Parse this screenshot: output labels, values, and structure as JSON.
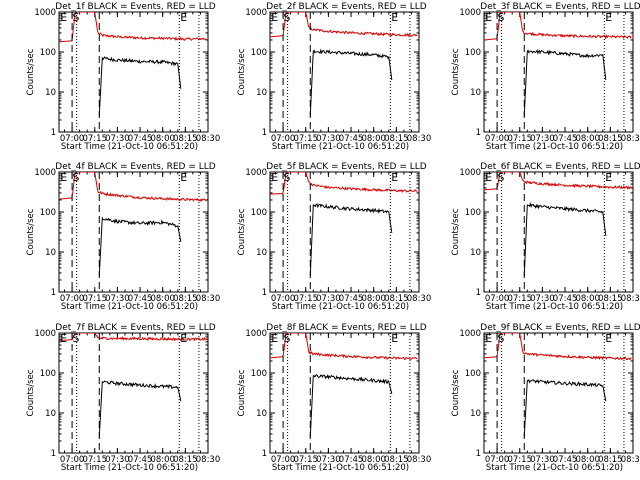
{
  "chart_data": [
    {
      "type": "line",
      "title": "Det_1f BLACK = Events, RED = LLD",
      "xlabel": "Start Time (21-Oct-10 06:51:20)",
      "ylabel": "Counts/sec",
      "yscale": "log",
      "ylim": [
        1,
        1000
      ],
      "yticks": [
        "1",
        "10",
        "100",
        "1000"
      ],
      "xlim": [
        "06:51:20",
        "08:30"
      ],
      "xticks": [
        "07:00",
        "07:15",
        "07:30",
        "07:45",
        "08:00",
        "08:15",
        "08:30"
      ],
      "markers": [
        {
          "label": "E",
          "at": "06:51:30"
        },
        {
          "label": "S",
          "at": "06:59:30"
        },
        {
          "label": "E",
          "at": "08:11:00"
        }
      ],
      "events_x": [
        "07:18",
        "07:20",
        "07:30",
        "07:45",
        "08:00",
        "08:10",
        "08:12"
      ],
      "events_y": [
        2.5,
        70,
        63,
        58,
        56,
        50,
        12
      ],
      "lld_x": [
        "06:51:20",
        "07:00",
        "07:02",
        "07:04",
        "07:15",
        "07:17",
        "07:20",
        "07:30",
        "07:45",
        "08:00",
        "08:15",
        "08:29"
      ],
      "lld_y": [
        180,
        190,
        980,
        1000,
        1000,
        300,
        260,
        240,
        225,
        220,
        210,
        215
      ],
      "series": []
    },
    {
      "type": "line",
      "title": "Det_2f BLACK = Events, RED = LLD",
      "xlabel": "Start Time (21-Oct-10 06:51:20)",
      "ylabel": "Counts/sec",
      "yscale": "log",
      "ylim": [
        1,
        1000
      ],
      "yticks": [
        "1",
        "10",
        "100",
        "1000"
      ],
      "xlim": [
        "06:51:20",
        "08:30"
      ],
      "xticks": [
        "07:00",
        "07:15",
        "07:30",
        "07:45",
        "08:00",
        "08:15",
        "08:30"
      ],
      "markers": [
        {
          "label": "E",
          "at": "06:51:30"
        },
        {
          "label": "S",
          "at": "06:59:30"
        },
        {
          "label": "E",
          "at": "08:11:00"
        }
      ],
      "events_x": [
        "07:18",
        "07:20",
        "07:30",
        "07:45",
        "08:00",
        "08:10",
        "08:12"
      ],
      "events_y": [
        2.5,
        105,
        100,
        92,
        85,
        75,
        20
      ],
      "lld_x": [
        "06:51:20",
        "07:00",
        "07:02",
        "07:04",
        "07:15",
        "07:17",
        "07:20",
        "07:30",
        "07:45",
        "08:00",
        "08:15",
        "08:29"
      ],
      "lld_y": [
        240,
        255,
        980,
        1000,
        1000,
        400,
        360,
        330,
        300,
        285,
        270,
        265
      ],
      "series": []
    },
    {
      "type": "line",
      "title": "Det_3f BLACK = Events, RED = LLD",
      "xlabel": "Start Time (21-Oct-10 06:51:20)",
      "ylabel": "Counts/sec",
      "yscale": "log",
      "ylim": [
        1,
        1000
      ],
      "yticks": [
        "1",
        "10",
        "100",
        "1000"
      ],
      "xlim": [
        "06:51:20",
        "08:30"
      ],
      "xticks": [
        "07:00",
        "07:15",
        "07:30",
        "07:45",
        "08:00",
        "08:15",
        "08:30"
      ],
      "markers": [
        {
          "label": "E",
          "at": "06:51:30"
        },
        {
          "label": "S",
          "at": "06:59:30"
        },
        {
          "label": "E",
          "at": "08:11:00"
        }
      ],
      "events_x": [
        "07:18",
        "07:20",
        "07:30",
        "07:45",
        "08:00",
        "08:10",
        "08:12"
      ],
      "events_y": [
        2.5,
        105,
        100,
        90,
        80,
        85,
        20
      ],
      "lld_x": [
        "06:51:20",
        "07:00",
        "07:02",
        "07:04",
        "07:15",
        "07:17",
        "07:20",
        "07:30",
        "07:45",
        "08:00",
        "08:15",
        "08:29"
      ],
      "lld_y": [
        200,
        215,
        980,
        1000,
        1000,
        310,
        290,
        270,
        255,
        245,
        240,
        235
      ],
      "series": []
    },
    {
      "type": "line",
      "title": "Det_4f BLACK = Events, RED = LLD",
      "xlabel": "Start Time (21-Oct-10 06:51:20)",
      "ylabel": "Counts/sec",
      "yscale": "log",
      "ylim": [
        1,
        1000
      ],
      "yticks": [
        "1",
        "10",
        "100",
        "1000"
      ],
      "xlim": [
        "06:51:20",
        "08:30"
      ],
      "xticks": [
        "07:00",
        "07:15",
        "07:30",
        "07:45",
        "08:00",
        "08:15",
        "08:30"
      ],
      "markers": [
        {
          "label": "E",
          "at": "06:51:30"
        },
        {
          "label": "S",
          "at": "06:59:30"
        },
        {
          "label": "E",
          "at": "08:11:00"
        }
      ],
      "events_x": [
        "07:18",
        "07:20",
        "07:30",
        "07:45",
        "08:00",
        "08:10",
        "08:12"
      ],
      "events_y": [
        2.5,
        70,
        58,
        52,
        55,
        45,
        18
      ],
      "lld_x": [
        "06:51:20",
        "07:00",
        "07:02",
        "07:04",
        "07:15",
        "07:17",
        "07:20",
        "07:30",
        "07:45",
        "08:00",
        "08:15",
        "08:29"
      ],
      "lld_y": [
        210,
        225,
        980,
        1000,
        1000,
        320,
        290,
        260,
        230,
        215,
        205,
        200
      ],
      "series": []
    },
    {
      "type": "line",
      "title": "Det_5f BLACK = Events, RED = LLD",
      "xlabel": "Start Time (21-Oct-10 06:51:20)",
      "ylabel": "Counts/sec",
      "yscale": "log",
      "ylim": [
        1,
        1000
      ],
      "yticks": [
        "1",
        "10",
        "100",
        "1000"
      ],
      "xlim": [
        "06:51:20",
        "08:30"
      ],
      "xticks": [
        "07:00",
        "07:15",
        "07:30",
        "07:45",
        "08:00",
        "08:15",
        "08:30"
      ],
      "markers": [
        {
          "label": "E",
          "at": "06:51:30"
        },
        {
          "label": "S",
          "at": "06:59:30"
        },
        {
          "label": "E",
          "at": "08:11:00"
        }
      ],
      "events_x": [
        "07:18",
        "07:20",
        "07:30",
        "07:45",
        "08:00",
        "08:10",
        "08:12"
      ],
      "events_y": [
        2.5,
        150,
        135,
        120,
        110,
        100,
        30
      ],
      "lld_x": [
        "06:51:20",
        "07:00",
        "07:02",
        "07:04",
        "07:15",
        "07:17",
        "07:20",
        "07:30",
        "07:45",
        "08:00",
        "08:15",
        "08:29"
      ],
      "lld_y": [
        280,
        290,
        980,
        1000,
        1000,
        550,
        470,
        410,
        380,
        360,
        340,
        335
      ],
      "series": []
    },
    {
      "type": "line",
      "title": "Det_6f BLACK = Events, RED = LLD",
      "xlabel": "Start Time (21-Oct-10 06:51:20)",
      "ylabel": "Counts/sec",
      "yscale": "log",
      "ylim": [
        1,
        1000
      ],
      "yticks": [
        "1",
        "10",
        "100",
        "1000"
      ],
      "xlim": [
        "06:51:20",
        "08:30"
      ],
      "xticks": [
        "07:00",
        "07:15",
        "07:30",
        "07:45",
        "08:00",
        "08:15",
        "08:30"
      ],
      "markers": [
        {
          "label": "E",
          "at": "06:51:30"
        },
        {
          "label": "S",
          "at": "06:59:30"
        },
        {
          "label": "E",
          "at": "08:11:00"
        }
      ],
      "events_x": [
        "07:18",
        "07:20",
        "07:30",
        "07:45",
        "08:00",
        "08:10",
        "08:12"
      ],
      "events_y": [
        2.5,
        150,
        135,
        120,
        108,
        100,
        25
      ],
      "lld_x": [
        "06:51:20",
        "07:00",
        "07:02",
        "07:04",
        "07:15",
        "07:17",
        "07:20",
        "07:30",
        "07:45",
        "08:00",
        "08:15",
        "08:29"
      ],
      "lld_y": [
        360,
        380,
        980,
        1000,
        1000,
        600,
        550,
        510,
        470,
        440,
        420,
        410
      ],
      "series": []
    },
    {
      "type": "line",
      "title": "Det_7f BLACK = Events, RED = LLD",
      "xlabel": "Start Time (21-Oct-10 06:51:20)",
      "ylabel": "Counts/sec",
      "yscale": "log",
      "ylim": [
        1,
        1000
      ],
      "yticks": [
        "1",
        "10",
        "100",
        "1000"
      ],
      "xlim": [
        "06:51:20",
        "08:30"
      ],
      "xticks": [
        "07:00",
        "07:15",
        "07:30",
        "07:45",
        "08:00",
        "08:15",
        "08:30"
      ],
      "markers": [
        {
          "label": "E",
          "at": "06:51:30"
        },
        {
          "label": "S",
          "at": "06:59:30"
        },
        {
          "label": "E",
          "at": "08:11:00"
        }
      ],
      "events_x": [
        "07:18",
        "07:20",
        "07:30",
        "07:45",
        "08:00",
        "08:10",
        "08:12"
      ],
      "events_y": [
        2.5,
        60,
        55,
        50,
        46,
        44,
        20
      ],
      "lld_x": [
        "06:51:20",
        "07:00",
        "07:02",
        "07:04",
        "07:15",
        "07:17",
        "07:20",
        "07:30",
        "07:45",
        "08:00",
        "08:15",
        "08:29"
      ],
      "lld_y": [
        650,
        680,
        980,
        1000,
        1000,
        760,
        740,
        730,
        720,
        710,
        700,
        700
      ],
      "series": []
    },
    {
      "type": "line",
      "title": "Det_8f BLACK = Events, RED = LLD",
      "xlabel": "Start Time (21-Oct-10 06:51:20)",
      "ylabel": "Counts/sec",
      "yscale": "log",
      "ylim": [
        1,
        1000
      ],
      "yticks": [
        "1",
        "10",
        "100",
        "1000"
      ],
      "xlim": [
        "06:51:20",
        "08:30"
      ],
      "xticks": [
        "07:00",
        "07:15",
        "07:30",
        "07:45",
        "08:00",
        "08:15",
        "08:30"
      ],
      "markers": [
        {
          "label": "E",
          "at": "06:51:30"
        },
        {
          "label": "S",
          "at": "06:59:30"
        },
        {
          "label": "E",
          "at": "08:11:00"
        }
      ],
      "events_x": [
        "07:18",
        "07:20",
        "07:30",
        "07:45",
        "08:00",
        "08:10",
        "08:12"
      ],
      "events_y": [
        2.5,
        85,
        80,
        72,
        65,
        60,
        30
      ],
      "lld_x": [
        "06:51:20",
        "07:00",
        "07:02",
        "07:04",
        "07:15",
        "07:17",
        "07:20",
        "07:30",
        "07:45",
        "08:00",
        "08:15",
        "08:29"
      ],
      "lld_y": [
        240,
        255,
        980,
        1000,
        1000,
        330,
        300,
        280,
        260,
        245,
        235,
        230
      ],
      "series": []
    },
    {
      "type": "line",
      "title": "Det_9f BLACK = Events, RED = LLD",
      "xlabel": "Start Time (21-Oct-10 06:51:20)",
      "ylabel": "Counts/sec",
      "yscale": "log",
      "ylim": [
        1,
        1000
      ],
      "yticks": [
        "1",
        "10",
        "100",
        "1000"
      ],
      "xlim": [
        "06:51:20",
        "08:30"
      ],
      "xticks": [
        "07:00",
        "07:15",
        "07:30",
        "07:45",
        "08:00",
        "08:15",
        "08:30"
      ],
      "markers": [
        {
          "label": "E",
          "at": "06:51:30"
        },
        {
          "label": "S",
          "at": "06:59:30"
        },
        {
          "label": "E",
          "at": "08:11:00"
        }
      ],
      "events_x": [
        "07:18",
        "07:20",
        "07:30",
        "07:45",
        "08:00",
        "08:10",
        "08:12"
      ],
      "events_y": [
        2.5,
        65,
        60,
        55,
        52,
        48,
        20
      ],
      "lld_x": [
        "06:51:20",
        "07:00",
        "07:02",
        "07:04",
        "07:15",
        "07:17",
        "07:20",
        "07:30",
        "07:45",
        "08:00",
        "08:15",
        "08:29"
      ],
      "lld_y": [
        240,
        255,
        980,
        1000,
        1000,
        330,
        300,
        280,
        260,
        245,
        235,
        230
      ],
      "series": []
    }
  ],
  "colors": {
    "events": "#000000",
    "lld": "#d40000",
    "axes": "#000000"
  }
}
